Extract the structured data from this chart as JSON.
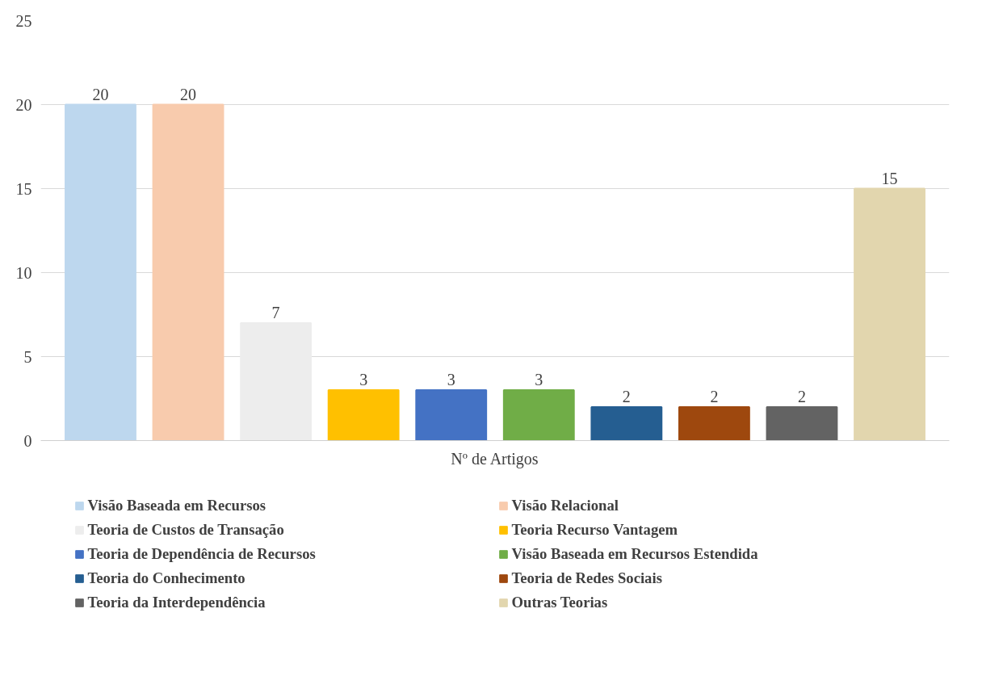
{
  "chart_data": {
    "type": "bar",
    "categories": [
      "Nº de Artigos"
    ],
    "series": [
      {
        "name": "Visão Baseada em Recursos",
        "color": "#bdd7ee",
        "values": [
          20
        ]
      },
      {
        "name": "Visão Relacional",
        "color": "#f8cbad",
        "values": [
          20
        ]
      },
      {
        "name": "Teoria de Custos de Transação",
        "color": "#ededed",
        "values": [
          7
        ]
      },
      {
        "name": "Teoria Recurso Vantagem",
        "color": "#ffc000",
        "values": [
          3
        ]
      },
      {
        "name": "Teoria de Dependência de Recursos",
        "color": "#4472c4",
        "values": [
          3
        ]
      },
      {
        "name": "Visão Baseada em Recursos Estendida",
        "color": "#70ad47",
        "values": [
          3
        ]
      },
      {
        "name": "Teoria do Conhecimento",
        "color": "#255e91",
        "values": [
          2
        ]
      },
      {
        "name": "Teoria de Redes Sociais",
        "color": "#9e480e",
        "values": [
          2
        ]
      },
      {
        "name": "Teoria da Interdependência",
        "color": "#636363",
        "values": [
          2
        ]
      },
      {
        "name": "Outras Teorias",
        "color": "#e2d6ae",
        "values": [
          15
        ]
      }
    ],
    "ylim": [
      0,
      25
    ],
    "yticks": [
      0,
      5,
      10,
      15,
      20,
      25
    ],
    "grid": "y",
    "legend": "bottom",
    "data_labels": true
  }
}
